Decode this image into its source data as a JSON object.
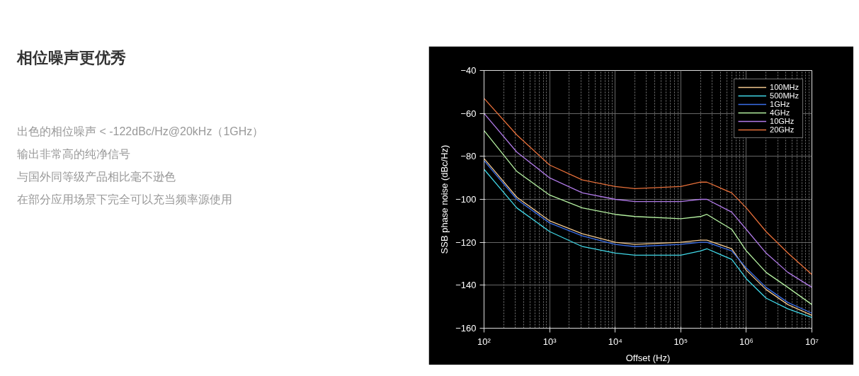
{
  "chart_data": {
    "type": "line",
    "title": "相位噪声更优秀",
    "annotations": [
      "出色的相位噪声 < -122dBc/Hz@20kHz（1GHz）",
      "输出非常高的纯净信号",
      "与国外同等级产品相比毫不逊色",
      "在部分应用场景下完全可以充当频率源使用"
    ],
    "xlabel": "Offset (Hz)",
    "ylabel": "SSB phase noise (dBc/Hz)",
    "x": [
      100,
      316,
      1000,
      3162,
      10000,
      20000,
      100000,
      200000,
      250000,
      600000,
      1000000,
      2000000,
      4300000,
      10000000
    ],
    "series": [
      {
        "name": "100MHz",
        "color": "#f2c88e",
        "values": [
          -81,
          -99,
          -110,
          -116,
          -120,
          -121,
          -120,
          -119,
          -119,
          -123,
          -133,
          -142,
          -149,
          -154
        ]
      },
      {
        "name": "500MHz",
        "color": "#40d8e8",
        "values": [
          -86,
          -104,
          -115,
          -122,
          -125,
          -126,
          -126,
          -124,
          -123,
          -128,
          -137,
          -146,
          -151,
          -155
        ]
      },
      {
        "name": "1GHz",
        "color": "#3a6ee8",
        "values": [
          -82,
          -100,
          -111,
          -117,
          -121,
          -122,
          -121,
          -120,
          -120,
          -124,
          -132,
          -141,
          -148,
          -153
        ]
      },
      {
        "name": "4GHz",
        "color": "#b4f0a0",
        "values": [
          -68,
          -87,
          -98,
          -104,
          -107,
          -108,
          -109,
          -108,
          -107,
          -114,
          -124,
          -134,
          -141,
          -149
        ]
      },
      {
        "name": "10GHz",
        "color": "#b07ae8",
        "values": [
          -60,
          -78,
          -90,
          -97,
          -100,
          -101,
          -101,
          -100,
          -100,
          -106,
          -114,
          -125,
          -134,
          -141
        ]
      },
      {
        "name": "20GHz",
        "color": "#e8703a",
        "values": [
          -53,
          -70,
          -84,
          -91,
          -94,
          -95,
          -94,
          -92,
          -92,
          -97,
          -104,
          -115,
          -125,
          -135
        ]
      }
    ],
    "log": "x",
    "xlim": [
      100,
      10000000
    ],
    "xticks": [
      {
        "value": 100,
        "label": "10²"
      },
      {
        "value": 1000,
        "label": "10³"
      },
      {
        "value": 10000,
        "label": "10⁴"
      },
      {
        "value": 100000,
        "label": "10⁵"
      },
      {
        "value": 1000000,
        "label": "10⁶"
      },
      {
        "value": 10000000,
        "label": "10⁷"
      }
    ],
    "ylim": [
      -160,
      -40
    ],
    "yticks": [
      -160,
      -140,
      -120,
      -100,
      -80,
      -60,
      -40
    ],
    "grid": true,
    "legend": "top right",
    "line_style": "solid",
    "marker": "none"
  }
}
